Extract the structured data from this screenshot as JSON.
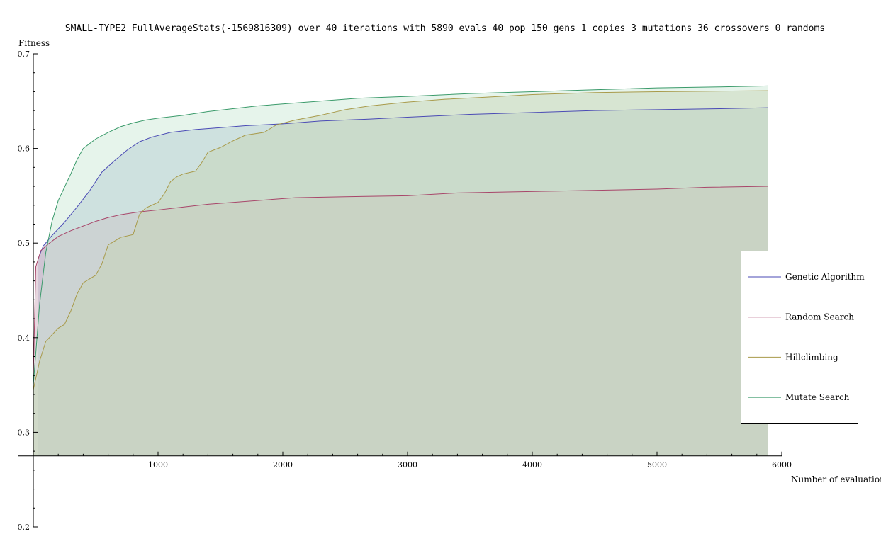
{
  "chart_data": {
    "type": "area",
    "title": "SMALL-TYPE2 FullAverageStats(-1569816309) over 40 iterations with 5890 evals 40 pop 150 gens 1 copies 3 mutations 36 crossovers 0 randoms",
    "xlabel": "Number of evaluations",
    "ylabel": "Fitness",
    "xlim": [
      0,
      6000
    ],
    "ylim": [
      0.2,
      0.7
    ],
    "x_axis_y": 0.275,
    "x_ticks": [
      1000,
      2000,
      3000,
      4000,
      5000,
      6000
    ],
    "y_ticks": [
      0.2,
      0.3,
      0.4,
      0.5,
      0.6,
      0.7
    ],
    "grid": false,
    "legend_position": "right",
    "series": [
      {
        "name": "Genetic Algorithm",
        "color": "#4a4ab5",
        "fill": "#9fb4cf",
        "points": [
          [
            40,
            0.484
          ],
          [
            80,
            0.497
          ],
          [
            150,
            0.508
          ],
          [
            250,
            0.522
          ],
          [
            350,
            0.538
          ],
          [
            450,
            0.555
          ],
          [
            550,
            0.575
          ],
          [
            650,
            0.587
          ],
          [
            750,
            0.598
          ],
          [
            850,
            0.607
          ],
          [
            950,
            0.612
          ],
          [
            1100,
            0.617
          ],
          [
            1300,
            0.62
          ],
          [
            1500,
            0.622
          ],
          [
            1700,
            0.624
          ],
          [
            2000,
            0.626
          ],
          [
            2300,
            0.629
          ],
          [
            2700,
            0.631
          ],
          [
            3000,
            0.633
          ],
          [
            3500,
            0.636
          ],
          [
            4000,
            0.638
          ],
          [
            4500,
            0.64
          ],
          [
            5000,
            0.641
          ],
          [
            5500,
            0.642
          ],
          [
            5890,
            0.643
          ]
        ]
      },
      {
        "name": "Random Search",
        "color": "#a8466a",
        "fill": "#c9a7b9",
        "points": [
          [
            0,
            0.36
          ],
          [
            20,
            0.475
          ],
          [
            60,
            0.492
          ],
          [
            120,
            0.499
          ],
          [
            200,
            0.507
          ],
          [
            300,
            0.513
          ],
          [
            400,
            0.518
          ],
          [
            500,
            0.523
          ],
          [
            600,
            0.527
          ],
          [
            700,
            0.53
          ],
          [
            850,
            0.533
          ],
          [
            1000,
            0.535
          ],
          [
            1200,
            0.538
          ],
          [
            1400,
            0.541
          ],
          [
            1600,
            0.543
          ],
          [
            1800,
            0.545
          ],
          [
            2100,
            0.548
          ],
          [
            2500,
            0.549
          ],
          [
            3000,
            0.55
          ],
          [
            3400,
            0.553
          ],
          [
            3800,
            0.554
          ],
          [
            4200,
            0.555
          ],
          [
            4600,
            0.556
          ],
          [
            5000,
            0.557
          ],
          [
            5400,
            0.559
          ],
          [
            5890,
            0.56
          ]
        ]
      },
      {
        "name": "Hillclimbing",
        "color": "#a89a4a",
        "fill": "#c4c49a",
        "points": [
          [
            0,
            0.345
          ],
          [
            50,
            0.375
          ],
          [
            100,
            0.396
          ],
          [
            200,
            0.41
          ],
          [
            250,
            0.414
          ],
          [
            300,
            0.428
          ],
          [
            350,
            0.446
          ],
          [
            400,
            0.458
          ],
          [
            450,
            0.462
          ],
          [
            500,
            0.466
          ],
          [
            550,
            0.478
          ],
          [
            600,
            0.498
          ],
          [
            650,
            0.502
          ],
          [
            700,
            0.506
          ],
          [
            800,
            0.509
          ],
          [
            850,
            0.53
          ],
          [
            900,
            0.537
          ],
          [
            1000,
            0.543
          ],
          [
            1050,
            0.552
          ],
          [
            1100,
            0.565
          ],
          [
            1150,
            0.57
          ],
          [
            1200,
            0.573
          ],
          [
            1300,
            0.576
          ],
          [
            1350,
            0.585
          ],
          [
            1400,
            0.596
          ],
          [
            1500,
            0.601
          ],
          [
            1600,
            0.608
          ],
          [
            1700,
            0.614
          ],
          [
            1850,
            0.617
          ],
          [
            1950,
            0.625
          ],
          [
            2100,
            0.63
          ],
          [
            2300,
            0.635
          ],
          [
            2500,
            0.641
          ],
          [
            2700,
            0.645
          ],
          [
            3000,
            0.649
          ],
          [
            3300,
            0.652
          ],
          [
            3600,
            0.654
          ],
          [
            4000,
            0.657
          ],
          [
            4500,
            0.659
          ],
          [
            5000,
            0.66
          ],
          [
            5890,
            0.661
          ]
        ]
      },
      {
        "name": "Mutate Search",
        "color": "#3a9a6a",
        "fill": "#c7e6d2",
        "points": [
          [
            0,
            0.35
          ],
          [
            50,
            0.435
          ],
          [
            100,
            0.49
          ],
          [
            150,
            0.523
          ],
          [
            200,
            0.545
          ],
          [
            300,
            0.573
          ],
          [
            350,
            0.588
          ],
          [
            400,
            0.6
          ],
          [
            500,
            0.61
          ],
          [
            600,
            0.617
          ],
          [
            700,
            0.623
          ],
          [
            800,
            0.627
          ],
          [
            900,
            0.63
          ],
          [
            1000,
            0.632
          ],
          [
            1200,
            0.635
          ],
          [
            1400,
            0.639
          ],
          [
            1600,
            0.642
          ],
          [
            1800,
            0.645
          ],
          [
            2000,
            0.647
          ],
          [
            2300,
            0.65
          ],
          [
            2600,
            0.653
          ],
          [
            3000,
            0.655
          ],
          [
            3500,
            0.658
          ],
          [
            4000,
            0.66
          ],
          [
            4500,
            0.662
          ],
          [
            5000,
            0.664
          ],
          [
            5500,
            0.665
          ],
          [
            5890,
            0.666
          ]
        ]
      }
    ]
  }
}
